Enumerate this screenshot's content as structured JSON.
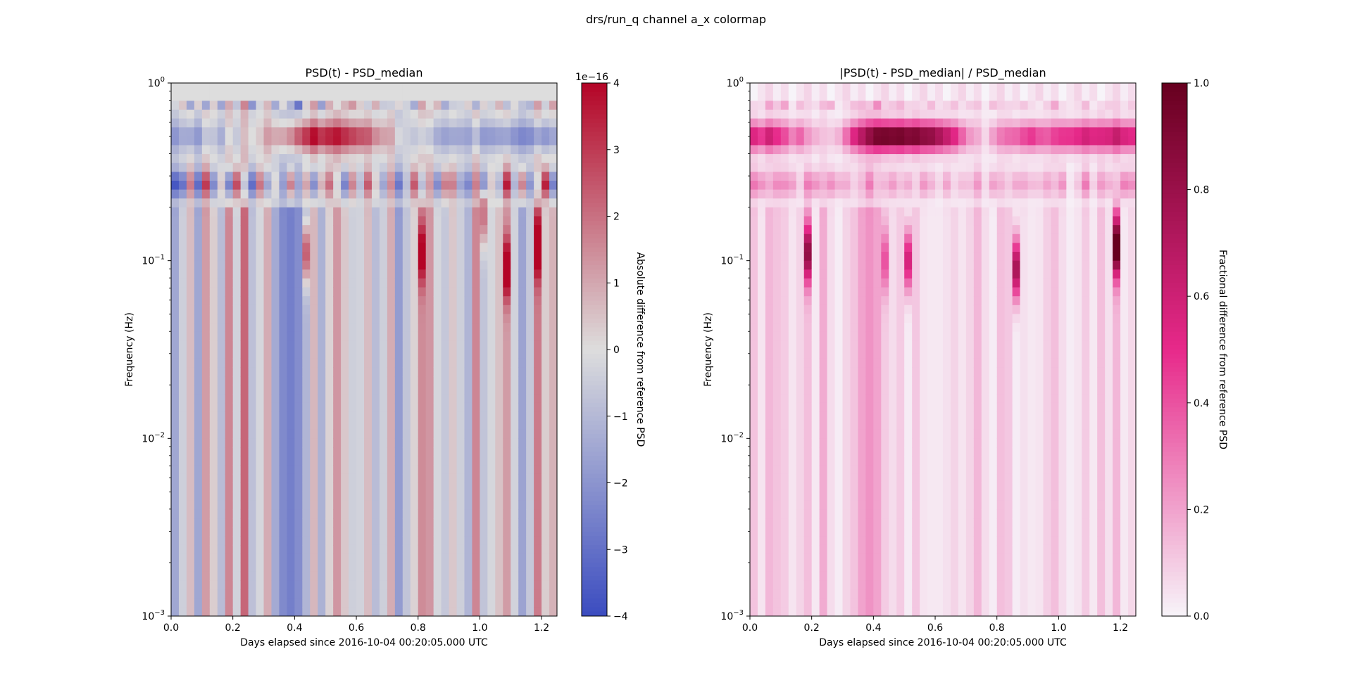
{
  "figure_title": "drs/run_q channel a_x colormap",
  "chart_data": [
    {
      "type": "heatmap",
      "title": "PSD(t) - PSD_median",
      "xlabel": "Days elapsed since 2016-10-04 00:20:05.000 UTC",
      "ylabel": "Frequency (Hz)",
      "xlim": [
        0.0,
        1.25
      ],
      "ylim": [
        0.001,
        1.0
      ],
      "yscale": "log",
      "xticks": [
        "0.0",
        "0.2",
        "0.4",
        "0.6",
        "0.8",
        "1.0",
        "1.2"
      ],
      "yticks": [
        {
          "base": "10",
          "exp": "−3"
        },
        {
          "base": "10",
          "exp": "−2"
        },
        {
          "base": "10",
          "exp": "−1"
        },
        {
          "base": "10",
          "exp": "0"
        }
      ],
      "colormap": "coolwarm",
      "clim": [
        -4,
        4
      ],
      "colorbar_label": "Absolute difference from reference PSD",
      "colorbar_ticks": [
        "−4",
        "−3",
        "−2",
        "−1",
        "0",
        "1",
        "2",
        "3",
        "4"
      ],
      "colorbar_offset": "1e−16",
      "colors": {
        "low": "#3b4cc0",
        "mid": "#dddddd",
        "high": "#b40426"
      },
      "column_values": [
        -1.5,
        -0.4,
        0.6,
        -1.5,
        1.2,
        0.3,
        -0.9,
        1.6,
        -0.3,
        2.2,
        -0.8,
        -0.2,
        0.9,
        -1.4,
        -2.3,
        -2.6,
        -2.2,
        -1.1,
        0.7,
        -1.2,
        0.2,
        1.3,
        0.4,
        -0.4,
        -0.3,
        0.6,
        -0.9,
        -0.4,
        0.9,
        -1.8,
        -0.7,
        0.2,
        1.5,
        1.3,
        -0.2,
        -0.6,
        0.4,
        -0.4,
        -1.1,
        1.6,
        -0.7,
        -0.2,
        0.5,
        1.2,
        -0.3,
        -1.6,
        -0.6,
        1.8,
        0.3,
        0.8
      ],
      "features": [
        {
          "kind": "line",
          "f": 0.76,
          "amp": [
            0.3,
            0.6,
            -1.8,
            0.8,
            -2.0,
            0.2,
            -1.3,
            0.4,
            -0.6,
            0.9,
            -1.8,
            -0.2,
            0.4,
            -1.0,
            0.9,
            -0.3,
            -2.2,
            0.6,
            1.0,
            -1.4,
            0.8,
            -0.5,
            0.6,
            1.5,
            0.4,
            -0.7,
            1.2,
            -0.4,
            -0.8,
            0.8,
            -0.1,
            -1.5,
            0.6,
            -0.4,
            0.8,
            -1.2,
            -0.6,
            -0.2,
            0.7,
            -1.8,
            0.5,
            -0.3,
            0.6,
            -1.3,
            0.2,
            -0.2,
            -0.9,
            0.6,
            -0.5,
            0.9
          ]
        },
        {
          "kind": "band",
          "f": 0.5,
          "amp": [
            -1.6,
            -1.4,
            -1.8,
            -1.5,
            -1.2,
            -0.9,
            -1.1,
            -0.6,
            -0.5,
            -0.2,
            0.3,
            0.5,
            1.0,
            1.6,
            2.0,
            2.6,
            3.4,
            3.8,
            4.0,
            3.9,
            3.7,
            3.6,
            3.4,
            3.3,
            2.9,
            2.4,
            2.0,
            1.4,
            0.8,
            0.5,
            -0.2,
            -0.8,
            -1.0,
            -1.2,
            -1.4,
            -1.6,
            -1.8,
            -1.5,
            -1.4,
            -1.6,
            -1.8,
            -1.9,
            -2.0,
            -2.2,
            -2.1,
            -2.0,
            -2.2,
            -2.4,
            -2.2,
            -2.0
          ]
        },
        {
          "kind": "band",
          "f": 0.27,
          "amp": [
            -3.2,
            -2.8,
            1.6,
            -2.6,
            2.6,
            -2.4,
            0.7,
            -3.0,
            2.8,
            -1.4,
            -2.8,
            2.0,
            -1.8,
            0.6,
            -1.0,
            2.6,
            -0.8,
            1.4,
            -2.4,
            1.2,
            2.0,
            -0.6,
            -2.6,
            1.8,
            -0.8,
            2.2,
            0.6,
            -1.4,
            1.2,
            -2.2,
            -0.6,
            2.4,
            -1.4,
            0.8,
            -2.2,
            2.0,
            1.6,
            -1.4,
            -2.0,
            1.2,
            -2.6,
            0.4,
            -1.2,
            3.2,
            -1.0,
            2.2,
            -1.8,
            -0.8,
            3.4,
            -2.8
          ]
        },
        {
          "kind": "spike",
          "i": 17,
          "f": 0.11,
          "amp": 3.4
        },
        {
          "kind": "spike",
          "i": 43,
          "f": 0.09,
          "amp": 3.9
        },
        {
          "kind": "spike",
          "i": 47,
          "f": 0.12,
          "amp": 3.8
        },
        {
          "kind": "spike",
          "i": 32,
          "f": 0.11,
          "amp": 3.0
        },
        {
          "kind": "spike",
          "i": 40,
          "f": 0.18,
          "amp": 2.6
        }
      ]
    },
    {
      "type": "heatmap",
      "title": "|PSD(t) - PSD_median| / PSD_median",
      "xlabel": "Days elapsed since 2016-10-04 00:20:05.000 UTC",
      "ylabel": "Frequency (Hz)",
      "xlim": [
        0.0,
        1.25
      ],
      "ylim": [
        0.001,
        1.0
      ],
      "yscale": "log",
      "xticks": [
        "0.0",
        "0.2",
        "0.4",
        "0.6",
        "0.8",
        "1.0",
        "1.2"
      ],
      "yticks": [
        {
          "base": "10",
          "exp": "−3"
        },
        {
          "base": "10",
          "exp": "−2"
        },
        {
          "base": "10",
          "exp": "−1"
        },
        {
          "base": "10",
          "exp": "0"
        }
      ],
      "colormap": "PuRd",
      "clim": [
        0.0,
        1.0
      ],
      "colorbar_label": "Fractional difference from reference PSD",
      "colorbar_ticks": [
        "0.0",
        "0.2",
        "0.4",
        "0.6",
        "0.8",
        "1.0"
      ],
      "colors": {
        "low": "#f7f4f9",
        "mid": "#e7298a",
        "high": "#67001f"
      },
      "column_values": [
        0.12,
        0.04,
        0.15,
        0.12,
        0.1,
        0.04,
        0.08,
        0.13,
        0.03,
        0.18,
        0.06,
        0.02,
        0.08,
        0.12,
        0.2,
        0.24,
        0.2,
        0.1,
        0.06,
        0.1,
        0.02,
        0.11,
        0.04,
        0.03,
        0.03,
        0.05,
        0.08,
        0.04,
        0.08,
        0.15,
        0.06,
        0.02,
        0.13,
        0.11,
        0.02,
        0.05,
        0.03,
        0.04,
        0.09,
        0.13,
        0.06,
        0.02,
        0.04,
        0.1,
        0.03,
        0.13,
        0.05,
        0.15,
        0.03,
        0.07
      ],
      "features": [
        {
          "kind": "line",
          "f": 0.76,
          "amp": [
            0.03,
            0.05,
            0.15,
            0.07,
            0.17,
            0.02,
            0.11,
            0.04,
            0.05,
            0.08,
            0.15,
            0.02,
            0.04,
            0.09,
            0.08,
            0.03,
            0.19,
            0.05,
            0.09,
            0.12,
            0.07,
            0.04,
            0.05,
            0.13,
            0.04,
            0.06,
            0.1,
            0.04,
            0.07,
            0.07,
            0.01,
            0.13,
            0.05,
            0.04,
            0.07,
            0.1,
            0.05,
            0.02,
            0.06,
            0.15,
            0.04,
            0.03,
            0.05,
            0.11,
            0.02,
            0.02,
            0.08,
            0.05,
            0.04,
            0.08
          ]
        },
        {
          "kind": "band",
          "f": 0.5,
          "amp": [
            0.55,
            0.5,
            0.6,
            0.5,
            0.42,
            0.3,
            0.36,
            0.2,
            0.17,
            0.07,
            0.1,
            0.17,
            0.33,
            0.55,
            0.68,
            0.82,
            0.95,
            1.0,
            1.0,
            1.0,
            0.98,
            0.96,
            0.92,
            0.9,
            0.8,
            0.68,
            0.55,
            0.38,
            0.22,
            0.14,
            0.06,
            0.22,
            0.28,
            0.33,
            0.38,
            0.44,
            0.5,
            0.42,
            0.38,
            0.44,
            0.5,
            0.52,
            0.55,
            0.6,
            0.58,
            0.55,
            0.6,
            0.65,
            0.6,
            0.55
          ]
        },
        {
          "kind": "band",
          "f": 0.27,
          "amp": [
            0.27,
            0.23,
            0.13,
            0.22,
            0.22,
            0.2,
            0.06,
            0.25,
            0.23,
            0.12,
            0.23,
            0.17,
            0.15,
            0.05,
            0.08,
            0.22,
            0.07,
            0.12,
            0.2,
            0.1,
            0.17,
            0.05,
            0.22,
            0.15,
            0.07,
            0.18,
            0.05,
            0.12,
            0.1,
            0.18,
            0.05,
            0.2,
            0.12,
            0.07,
            0.18,
            0.17,
            0.13,
            0.12,
            0.17,
            0.1,
            0.22,
            0.03,
            0.1,
            0.27,
            0.08,
            0.18,
            0.15,
            0.07,
            0.28,
            0.23
          ]
        },
        {
          "kind": "spike",
          "i": 7,
          "f": 0.11,
          "amp": 0.7
        },
        {
          "kind": "spike",
          "i": 20,
          "f": 0.1,
          "amp": 0.55
        },
        {
          "kind": "spike",
          "i": 34,
          "f": 0.09,
          "amp": 0.72
        },
        {
          "kind": "spike",
          "i": 47,
          "f": 0.12,
          "amp": 0.95
        },
        {
          "kind": "spike",
          "i": 17,
          "f": 0.1,
          "amp": 0.3
        }
      ]
    }
  ]
}
